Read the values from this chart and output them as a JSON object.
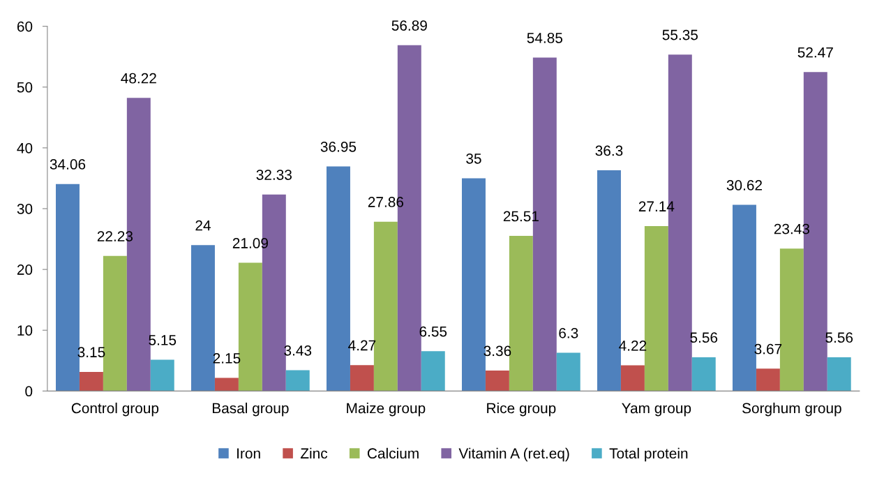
{
  "chart_data": {
    "type": "bar",
    "categories": [
      "Control group",
      "Basal group",
      "Maize group",
      "Rice group",
      "Yam group",
      "Sorghum group"
    ],
    "series": [
      {
        "name": "Iron",
        "color": "#4f81bd",
        "values": [
          34.06,
          24,
          36.95,
          35,
          36.3,
          30.62
        ]
      },
      {
        "name": "Zinc",
        "color": "#c0504d",
        "values": [
          3.15,
          2.15,
          4.27,
          3.36,
          4.22,
          3.67
        ]
      },
      {
        "name": "Calcium",
        "color": "#9bbb59",
        "values": [
          22.23,
          21.09,
          27.86,
          25.51,
          27.14,
          23.43
        ]
      },
      {
        "name": "Vitamin A (ret.eq)",
        "color": "#8064a2",
        "values": [
          48.22,
          32.33,
          56.89,
          54.85,
          55.35,
          52.47
        ]
      },
      {
        "name": "Total protein",
        "color": "#4bacc6",
        "values": [
          5.15,
          3.43,
          6.55,
          6.3,
          5.56,
          5.56
        ]
      }
    ],
    "ylim": [
      0,
      60
    ],
    "yticks": [
      0,
      10,
      20,
      30,
      40,
      50,
      60
    ],
    "grid": false,
    "legend": "bottom",
    "data_labels": true
  }
}
